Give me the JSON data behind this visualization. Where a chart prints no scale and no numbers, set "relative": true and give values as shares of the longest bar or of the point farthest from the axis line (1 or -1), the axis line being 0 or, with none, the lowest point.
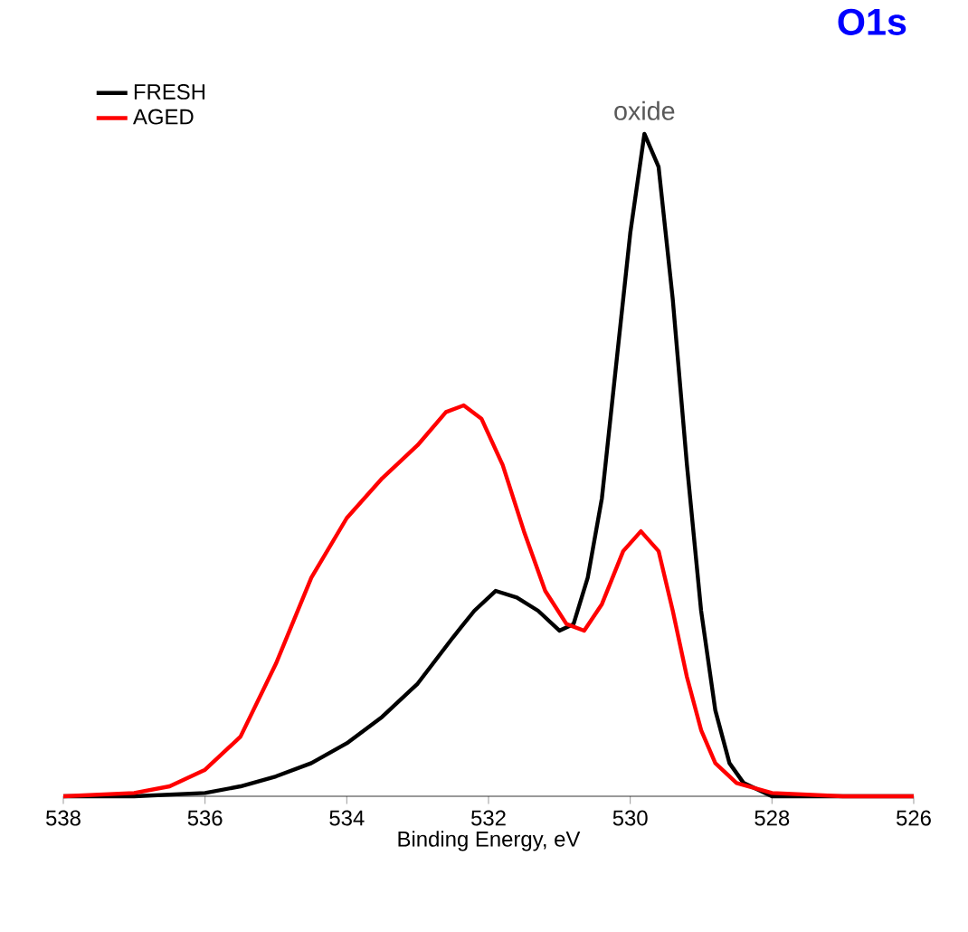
{
  "chart_data": {
    "type": "line",
    "title": "O1s",
    "xlabel": "Binding Energy, eV",
    "relative": true,
    "legend": "top left",
    "grid": false,
    "marker": "none",
    "line_style": "solid",
    "xlim": [
      538,
      526
    ],
    "xticks": [
      538,
      536,
      534,
      532,
      530,
      528,
      526
    ],
    "annotations": [
      {
        "text": "oxide",
        "x": 529.8,
        "y": 1.0
      }
    ],
    "series": [
      {
        "name": "FRESH",
        "color": "#000000",
        "x": [
          538,
          537,
          536,
          535.5,
          535,
          534.5,
          534,
          533.5,
          533,
          532.5,
          532.2,
          531.9,
          531.6,
          531.3,
          531.0,
          530.8,
          530.6,
          530.4,
          530.2,
          530.0,
          529.8,
          529.6,
          529.4,
          529.2,
          529.0,
          528.8,
          528.6,
          528.4,
          528.0,
          527,
          526
        ],
        "values": [
          0,
          0,
          0.005,
          0.015,
          0.03,
          0.05,
          0.08,
          0.12,
          0.17,
          0.24,
          0.28,
          0.31,
          0.3,
          0.28,
          0.25,
          0.26,
          0.33,
          0.45,
          0.65,
          0.85,
          1.0,
          0.95,
          0.75,
          0.5,
          0.28,
          0.13,
          0.05,
          0.02,
          0,
          0,
          0
        ]
      },
      {
        "name": "AGED",
        "color": "#ff0000",
        "x": [
          538,
          537,
          536.5,
          536,
          535.5,
          535,
          534.5,
          534.0,
          533.5,
          533,
          532.6,
          532.35,
          532.1,
          531.8,
          531.5,
          531.2,
          530.9,
          530.65,
          530.4,
          530.1,
          529.85,
          529.6,
          529.4,
          529.2,
          529.0,
          528.8,
          528.5,
          528,
          527,
          526
        ],
        "values": [
          0,
          0.005,
          0.015,
          0.04,
          0.09,
          0.2,
          0.33,
          0.42,
          0.48,
          0.53,
          0.58,
          0.59,
          0.57,
          0.5,
          0.4,
          0.31,
          0.26,
          0.25,
          0.29,
          0.37,
          0.4,
          0.37,
          0.28,
          0.18,
          0.1,
          0.05,
          0.02,
          0.005,
          0,
          0
        ]
      }
    ]
  }
}
